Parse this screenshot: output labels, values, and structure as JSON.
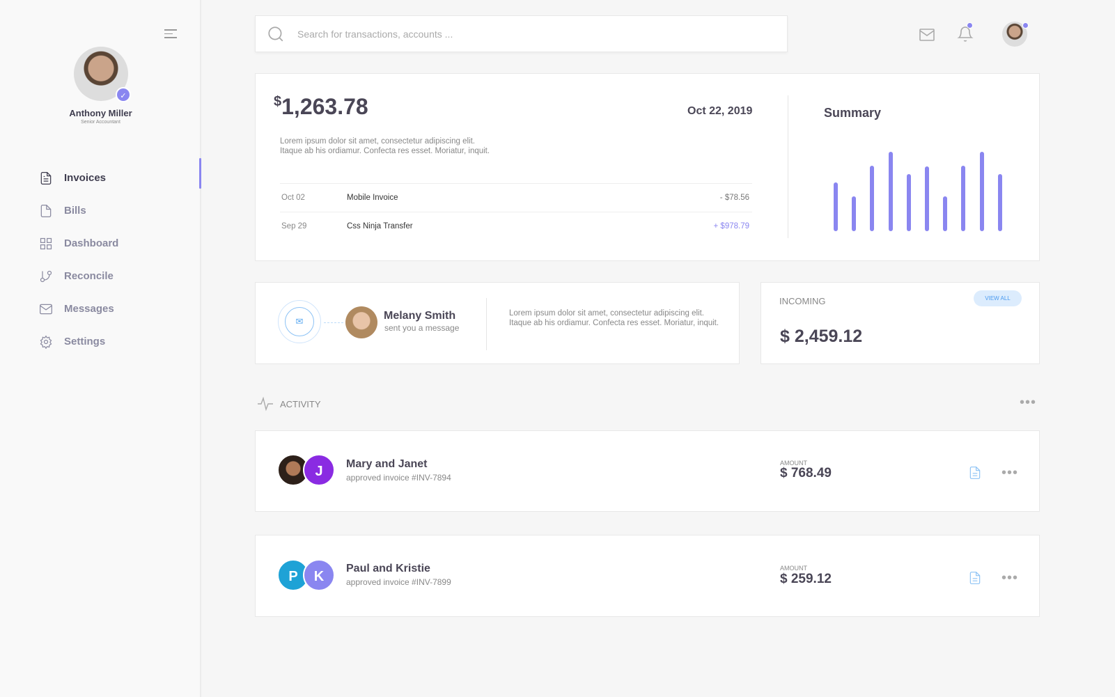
{
  "user": {
    "name": "Anthony Miller",
    "role": "Senior Accountant"
  },
  "sidebar": {
    "items": [
      {
        "label": "Invoices",
        "icon": "file-text-icon",
        "active": true
      },
      {
        "label": "Bills",
        "icon": "file-icon"
      },
      {
        "label": "Dashboard",
        "icon": "grid-icon"
      },
      {
        "label": "Reconcile",
        "icon": "git-branch-icon"
      },
      {
        "label": "Messages",
        "icon": "mail-icon"
      },
      {
        "label": "Settings",
        "icon": "gear-icon"
      }
    ]
  },
  "search": {
    "placeholder": "Search for transactions, accounts ..."
  },
  "accent": "#8a86f0",
  "balance_card": {
    "currency": "$",
    "amount": "1,263.78",
    "date": "Oct 22, 2019",
    "text": "Lorem ipsum dolor sit amet, consectetur adipiscing elit. Itaque ab his ordiamur. Confecta res esset. Moriatur, inquit.",
    "transactions": [
      {
        "date": "Oct 02",
        "name": "Mobile Invoice",
        "amount": "- $78.56"
      },
      {
        "date": "Sep 29",
        "name": "Css Ninja Transfer",
        "amount": "+ $978.79"
      }
    ]
  },
  "summary": {
    "title": "Summary"
  },
  "chart_data": {
    "type": "bar",
    "title": "Summary",
    "values": [
      69,
      50,
      93,
      113,
      81,
      92,
      50,
      93,
      113,
      81
    ],
    "color": "#8a86f0",
    "grid": false
  },
  "message_card": {
    "name": "Melany Smith",
    "sub": "sent you a message",
    "text": "Lorem ipsum dolor sit amet, consectetur adipiscing elit. Itaque ab his ordiamur. Confecta res esset. Moriatur, inquit."
  },
  "incoming": {
    "label": "INCOMING",
    "button": "VIEW ALL",
    "amount": "$ 2,459.12"
  },
  "activity": {
    "title": "ACTIVITY",
    "items": [
      {
        "initials": [
          "",
          "J"
        ],
        "name": "Mary and Janet",
        "sub": "approved invoice #INV-7894",
        "amount_label": "AMOUNT",
        "amount": "$ 768.49"
      },
      {
        "initials": [
          "P",
          "K"
        ],
        "name": "Paul and Kristie",
        "sub": "approved invoice #INV-7899",
        "amount_label": "AMOUNT",
        "amount": "$ 259.12"
      }
    ]
  }
}
